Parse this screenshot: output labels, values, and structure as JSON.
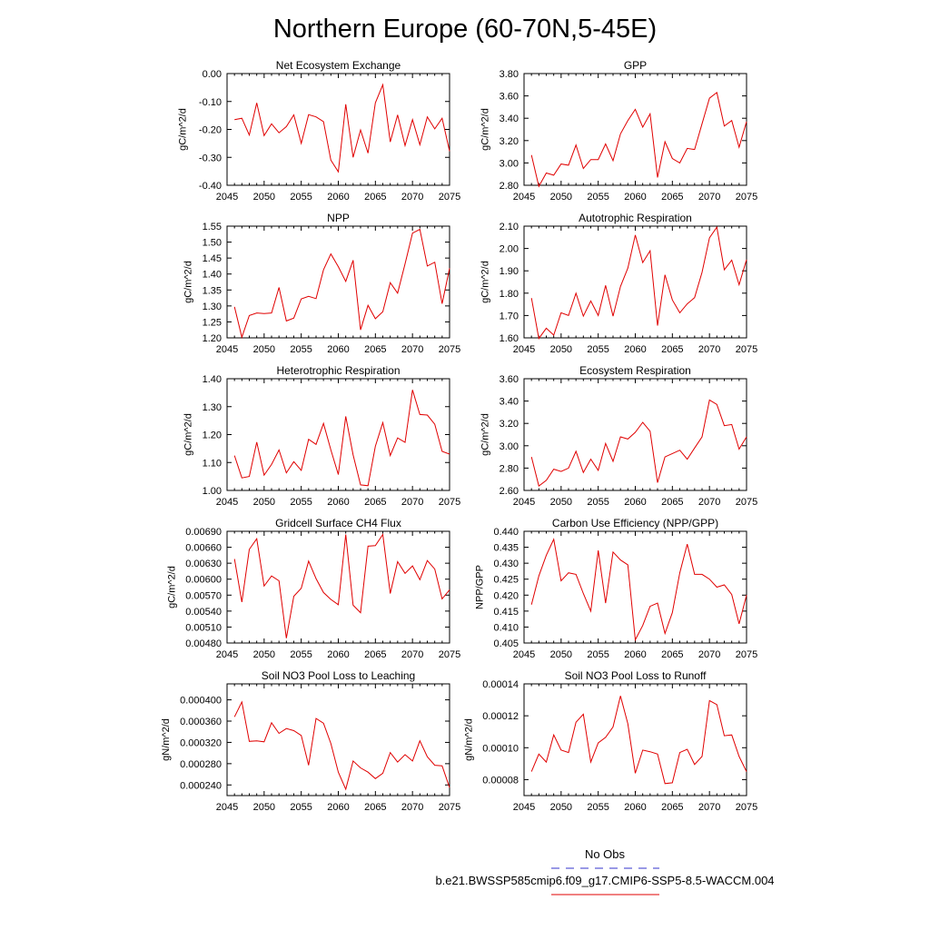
{
  "title": "Northern Europe (60-70N,5-45E)",
  "legend": {
    "obs_label": "No Obs",
    "obs_color": "#3333cc",
    "model_label": "b.e21.BWSSP585cmip6.f09_g17.CMIP6-SSP5-8.5-WACCM.004",
    "model_color": "#e00000"
  },
  "chart_data": [
    {
      "type": "line",
      "title": "Net Ecosystem Exchange",
      "ylabel": "gC/m^2/d",
      "xlim": [
        2045,
        2075
      ],
      "xticks": [
        2045,
        2050,
        2055,
        2060,
        2065,
        2070,
        2075
      ],
      "ylim": [
        -0.4,
        0.0
      ],
      "yticks": [
        "-0.40",
        "-0.30",
        "-0.20",
        "-0.10",
        "0.00"
      ],
      "x": [
        2046,
        2047,
        2048,
        2049,
        2050,
        2051,
        2052,
        2053,
        2054,
        2055,
        2056,
        2057,
        2058,
        2059,
        2060,
        2061,
        2062,
        2063,
        2064,
        2065,
        2066,
        2067,
        2068,
        2069,
        2070,
        2071,
        2072,
        2073,
        2074,
        2075
      ],
      "values": [
        -0.165,
        -0.16,
        -0.22,
        -0.105,
        -0.222,
        -0.18,
        -0.212,
        -0.19,
        -0.148,
        -0.25,
        -0.147,
        -0.155,
        -0.172,
        -0.31,
        -0.352,
        -0.11,
        -0.3,
        -0.202,
        -0.285,
        -0.105,
        -0.04,
        -0.245,
        -0.148,
        -0.258,
        -0.165,
        -0.255,
        -0.155,
        -0.198,
        -0.16,
        -0.278
      ]
    },
    {
      "type": "line",
      "title": "GPP",
      "ylabel": "gC/m^2/d",
      "xlim": [
        2045,
        2075
      ],
      "xticks": [
        2045,
        2050,
        2055,
        2060,
        2065,
        2070,
        2075
      ],
      "ylim": [
        2.8,
        3.8
      ],
      "yticks": [
        "2.80",
        "3.00",
        "3.20",
        "3.40",
        "3.60",
        "3.80"
      ],
      "x": [
        2046,
        2047,
        2048,
        2049,
        2050,
        2051,
        2052,
        2053,
        2054,
        2055,
        2056,
        2057,
        2058,
        2059,
        2060,
        2061,
        2062,
        2063,
        2064,
        2065,
        2066,
        2067,
        2068,
        2069,
        2070,
        2071,
        2072,
        2073,
        2074,
        2075
      ],
      "values": [
        3.07,
        2.79,
        2.91,
        2.89,
        2.99,
        2.98,
        3.16,
        2.95,
        3.03,
        3.03,
        3.17,
        3.02,
        3.26,
        3.38,
        3.48,
        3.32,
        3.44,
        2.87,
        3.19,
        3.04,
        3.0,
        3.13,
        3.12,
        3.35,
        3.58,
        3.63,
        3.33,
        3.38,
        3.14,
        3.37
      ]
    },
    {
      "type": "line",
      "title": "NPP",
      "ylabel": "gC/m^2/d",
      "xlim": [
        2045,
        2075
      ],
      "xticks": [
        2045,
        2050,
        2055,
        2060,
        2065,
        2070,
        2075
      ],
      "ylim": [
        1.2,
        1.55
      ],
      "yticks": [
        "1.20",
        "1.25",
        "1.30",
        "1.35",
        "1.40",
        "1.45",
        "1.50",
        "1.55"
      ],
      "x": [
        2046,
        2047,
        2048,
        2049,
        2050,
        2051,
        2052,
        2053,
        2054,
        2055,
        2056,
        2057,
        2058,
        2059,
        2060,
        2061,
        2062,
        2063,
        2064,
        2065,
        2066,
        2067,
        2068,
        2069,
        2070,
        2071,
        2072,
        2073,
        2074,
        2075
      ],
      "values": [
        1.297,
        1.202,
        1.27,
        1.278,
        1.276,
        1.278,
        1.358,
        1.253,
        1.262,
        1.322,
        1.33,
        1.323,
        1.413,
        1.463,
        1.423,
        1.377,
        1.443,
        1.225,
        1.302,
        1.26,
        1.282,
        1.373,
        1.34,
        1.432,
        1.528,
        1.54,
        1.425,
        1.437,
        1.307,
        1.418
      ]
    },
    {
      "type": "line",
      "title": "Autotrophic Respiration",
      "ylabel": "gC/m^2/d",
      "xlim": [
        2045,
        2075
      ],
      "xticks": [
        2045,
        2050,
        2055,
        2060,
        2065,
        2070,
        2075
      ],
      "ylim": [
        1.6,
        2.1
      ],
      "yticks": [
        "1.60",
        "1.70",
        "1.80",
        "1.90",
        "2.00",
        "2.10"
      ],
      "x": [
        2046,
        2047,
        2048,
        2049,
        2050,
        2051,
        2052,
        2053,
        2054,
        2055,
        2056,
        2057,
        2058,
        2059,
        2060,
        2061,
        2062,
        2063,
        2064,
        2065,
        2066,
        2067,
        2068,
        2069,
        2070,
        2071,
        2072,
        2073,
        2074,
        2075
      ],
      "values": [
        1.778,
        1.597,
        1.643,
        1.612,
        1.712,
        1.7,
        1.8,
        1.697,
        1.765,
        1.7,
        1.835,
        1.697,
        1.83,
        1.912,
        2.06,
        1.937,
        1.99,
        1.655,
        1.882,
        1.77,
        1.712,
        1.752,
        1.78,
        1.893,
        2.048,
        2.095,
        1.905,
        1.948,
        1.838,
        1.95
      ]
    },
    {
      "type": "line",
      "title": "Heterotrophic Respiration",
      "ylabel": "gC/m^2/d",
      "xlim": [
        2045,
        2075
      ],
      "xticks": [
        2045,
        2050,
        2055,
        2060,
        2065,
        2070,
        2075
      ],
      "ylim": [
        1.0,
        1.4
      ],
      "yticks": [
        "1.00",
        "1.10",
        "1.20",
        "1.30",
        "1.40"
      ],
      "x": [
        2046,
        2047,
        2048,
        2049,
        2050,
        2051,
        2052,
        2053,
        2054,
        2055,
        2056,
        2057,
        2058,
        2059,
        2060,
        2061,
        2062,
        2063,
        2064,
        2065,
        2066,
        2067,
        2068,
        2069,
        2070,
        2071,
        2072,
        2073,
        2074,
        2075
      ],
      "values": [
        1.125,
        1.045,
        1.05,
        1.173,
        1.055,
        1.093,
        1.145,
        1.063,
        1.103,
        1.072,
        1.183,
        1.165,
        1.24,
        1.145,
        1.057,
        1.265,
        1.127,
        1.02,
        1.017,
        1.158,
        1.243,
        1.125,
        1.188,
        1.172,
        1.36,
        1.272,
        1.27,
        1.237,
        1.14,
        1.13
      ]
    },
    {
      "type": "line",
      "title": "Ecosystem Respiration",
      "ylabel": "gC/m^2/d",
      "xlim": [
        2045,
        2075
      ],
      "xticks": [
        2045,
        2050,
        2055,
        2060,
        2065,
        2070,
        2075
      ],
      "ylim": [
        2.6,
        3.6
      ],
      "yticks": [
        "2.60",
        "2.80",
        "3.00",
        "3.20",
        "3.40",
        "3.60"
      ],
      "x": [
        2046,
        2047,
        2048,
        2049,
        2050,
        2051,
        2052,
        2053,
        2054,
        2055,
        2056,
        2057,
        2058,
        2059,
        2060,
        2061,
        2062,
        2063,
        2064,
        2065,
        2066,
        2067,
        2068,
        2069,
        2070,
        2071,
        2072,
        2073,
        2074,
        2075
      ],
      "values": [
        2.9,
        2.64,
        2.69,
        2.79,
        2.77,
        2.8,
        2.95,
        2.76,
        2.88,
        2.78,
        3.02,
        2.86,
        3.08,
        3.06,
        3.12,
        3.21,
        3.13,
        2.67,
        2.9,
        2.93,
        2.96,
        2.88,
        2.98,
        3.08,
        3.41,
        3.37,
        3.18,
        3.19,
        2.97,
        3.08
      ]
    },
    {
      "type": "line",
      "title": "Gridcell Surface CH4 Flux",
      "ylabel": "gC/m^2/d",
      "xlim": [
        2045,
        2075
      ],
      "xticks": [
        2045,
        2050,
        2055,
        2060,
        2065,
        2070,
        2075
      ],
      "ylim": [
        0.0048,
        0.0069
      ],
      "yticks": [
        "0.00480",
        "0.00510",
        "0.00540",
        "0.00570",
        "0.00600",
        "0.00630",
        "0.00660",
        "0.00690"
      ],
      "x": [
        2046,
        2047,
        2048,
        2049,
        2050,
        2051,
        2052,
        2053,
        2054,
        2055,
        2056,
        2057,
        2058,
        2059,
        2060,
        2061,
        2062,
        2063,
        2064,
        2065,
        2066,
        2067,
        2068,
        2069,
        2070,
        2071,
        2072,
        2073,
        2074,
        2075
      ],
      "values": [
        0.00638,
        0.00557,
        0.00656,
        0.00676,
        0.00587,
        0.00606,
        0.00597,
        0.00489,
        0.00568,
        0.00583,
        0.00634,
        0.00601,
        0.00575,
        0.00562,
        0.00552,
        0.00684,
        0.00551,
        0.00537,
        0.00662,
        0.00663,
        0.00684,
        0.00573,
        0.00633,
        0.00611,
        0.00625,
        0.00599,
        0.00635,
        0.00619,
        0.00563,
        0.0058
      ]
    },
    {
      "type": "line",
      "title": "Carbon Use Efficiency (NPP/GPP)",
      "ylabel": "NPP/GPP",
      "xlim": [
        2045,
        2075
      ],
      "xticks": [
        2045,
        2050,
        2055,
        2060,
        2065,
        2070,
        2075
      ],
      "ylim": [
        0.405,
        0.44
      ],
      "yticks": [
        "0.405",
        "0.410",
        "0.415",
        "0.420",
        "0.425",
        "0.430",
        "0.435",
        "0.440"
      ],
      "x": [
        2046,
        2047,
        2048,
        2049,
        2050,
        2051,
        2052,
        2053,
        2054,
        2055,
        2056,
        2057,
        2058,
        2059,
        2060,
        2061,
        2062,
        2063,
        2064,
        2065,
        2066,
        2067,
        2068,
        2069,
        2070,
        2071,
        2072,
        2073,
        2074,
        2075
      ],
      "values": [
        0.417,
        0.426,
        0.4325,
        0.4375,
        0.4245,
        0.427,
        0.4265,
        0.4205,
        0.415,
        0.434,
        0.4175,
        0.4335,
        0.431,
        0.4295,
        0.406,
        0.4105,
        0.4165,
        0.4175,
        0.408,
        0.4145,
        0.427,
        0.436,
        0.4265,
        0.4265,
        0.425,
        0.4225,
        0.4232,
        0.4202,
        0.411,
        0.42
      ]
    },
    {
      "type": "line",
      "title": "Soil NO3 Pool Loss to Leaching",
      "ylabel": "gN/m^2/d",
      "xlim": [
        2045,
        2075
      ],
      "xticks": [
        2045,
        2050,
        2055,
        2060,
        2065,
        2070,
        2075
      ],
      "ylim": [
        0.00022,
        0.00043
      ],
      "yticks": [
        "0.000240",
        "0.000280",
        "0.000320",
        "0.000360",
        "0.000400"
      ],
      "x": [
        2046,
        2047,
        2048,
        2049,
        2050,
        2051,
        2052,
        2053,
        2054,
        2055,
        2056,
        2057,
        2058,
        2059,
        2060,
        2061,
        2062,
        2063,
        2064,
        2065,
        2066,
        2067,
        2068,
        2069,
        2070,
        2071,
        2072,
        2073,
        2074,
        2075
      ],
      "values": [
        0.000368,
        0.000396,
        0.000322,
        0.000323,
        0.000321,
        0.000357,
        0.000337,
        0.000346,
        0.000342,
        0.000333,
        0.000277,
        0.000365,
        0.000356,
        0.000318,
        0.000264,
        0.000232,
        0.000285,
        0.000272,
        0.000264,
        0.000252,
        0.000262,
        0.000301,
        0.000283,
        0.000297,
        0.000285,
        0.000323,
        0.000293,
        0.000277,
        0.000276,
        0.000235
      ]
    },
    {
      "type": "line",
      "title": "Soil NO3 Pool Loss to Runoff",
      "ylabel": "gN/m^2/d",
      "xlim": [
        2045,
        2075
      ],
      "xticks": [
        2045,
        2050,
        2055,
        2060,
        2065,
        2070,
        2075
      ],
      "ylim": [
        7e-05,
        0.00014
      ],
      "yticks": [
        "0.00008",
        "0.00010",
        "0.00012",
        "0.00014"
      ],
      "x": [
        2046,
        2047,
        2048,
        2049,
        2050,
        2051,
        2052,
        2053,
        2054,
        2055,
        2056,
        2057,
        2058,
        2059,
        2060,
        2061,
        2062,
        2063,
        2064,
        2065,
        2066,
        2067,
        2068,
        2069,
        2070,
        2071,
        2072,
        2073,
        2074,
        2075
      ],
      "values": [
        8.5e-05,
        9.6e-05,
        9.1e-05,
        0.000108,
        9.85e-05,
        9.7e-05,
        0.000116,
        0.000121,
        9.1e-05,
        0.000103,
        0.0001065,
        0.000113,
        0.0001325,
        0.000115,
        8.4e-05,
        9.85e-05,
        9.75e-05,
        9.6e-05,
        7.75e-05,
        7.8e-05,
        9.7e-05,
        9.9e-05,
        8.95e-05,
        9.45e-05,
        0.0001295,
        0.000127,
        0.0001075,
        0.000108,
        9.45e-05,
        8.5e-05
      ]
    }
  ]
}
